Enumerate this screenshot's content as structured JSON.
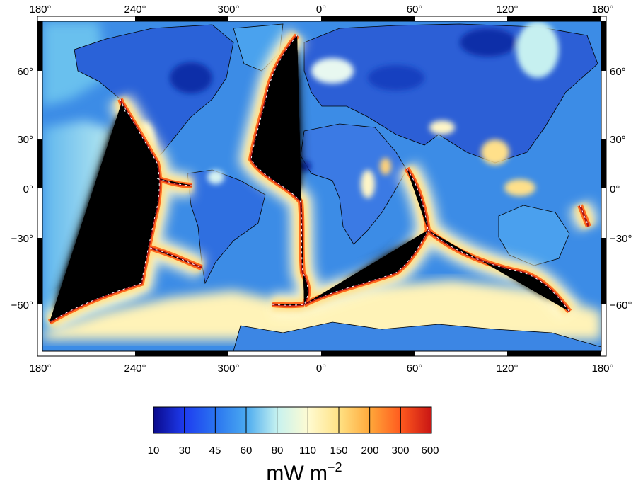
{
  "map": {
    "top_lon_labels": [
      "180°",
      "240°",
      "300°",
      "0°",
      "60°",
      "120°",
      "180°"
    ],
    "bottom_lon_labels": [
      "180°",
      "240°",
      "300°",
      "0°",
      "60°",
      "120°",
      "180°"
    ],
    "left_lat_labels": [
      "60°",
      "30°",
      "0°",
      "−30°",
      "−60°"
    ],
    "right_lat_labels": [
      "60°",
      "30°",
      "0°",
      "−30°",
      "−60°"
    ]
  },
  "colorbar": {
    "tick_labels": [
      "10",
      "30",
      "45",
      "60",
      "80",
      "110",
      "150",
      "200",
      "300",
      "600"
    ],
    "colors": [
      "#0b0a8c",
      "#1e3cf0",
      "#2a74f0",
      "#4aaaf0",
      "#c6f2f0",
      "#fffbd2",
      "#ffe284",
      "#ffa83a",
      "#ff5a1e",
      "#c81414",
      "#8b0a0a"
    ],
    "unit_base": "mW m",
    "unit_exp": "−2"
  },
  "colors": {
    "ocean_base": "#3c8ce6",
    "ridge_core": "#b01212",
    "ridge_mid": "#ff6a1e",
    "ridge_outer": "#ffe08a",
    "ridge_halo": "#fffad0",
    "land_cold": "#2a62d8",
    "land_deep": "#0e2ea8",
    "coast_line": "#000000"
  }
}
